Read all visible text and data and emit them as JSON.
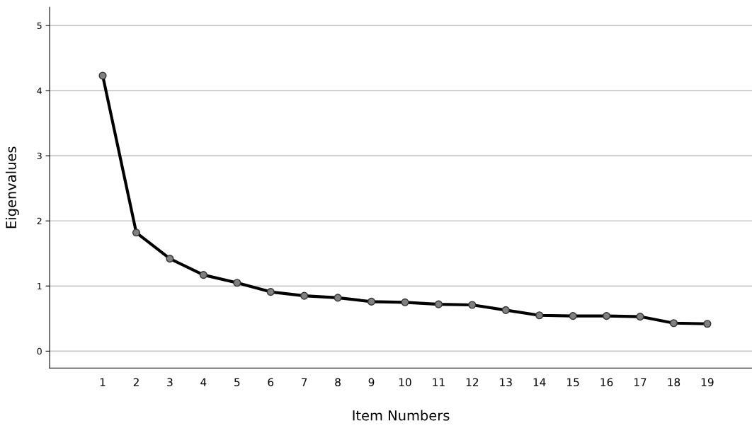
{
  "chart_data": {
    "type": "line",
    "xlabel": "Item Numbers",
    "ylabel": "Eigenvalues",
    "categories": [
      "1",
      "2",
      "3",
      "4",
      "5",
      "6",
      "7",
      "8",
      "9",
      "10",
      "11",
      "12",
      "13",
      "14",
      "15",
      "16",
      "17",
      "18",
      "19"
    ],
    "series": [
      {
        "color": "#000000",
        "values": [
          4.23,
          1.82,
          1.42,
          1.17,
          1.05,
          0.91,
          0.85,
          0.82,
          0.76,
          0.75,
          0.72,
          0.71,
          0.63,
          0.55,
          0.54,
          0.54,
          0.53,
          0.43,
          0.42
        ]
      }
    ],
    "ylim": [
      -0.26,
      5.28
    ],
    "yticks": [
      0,
      1,
      2,
      3,
      4,
      5
    ],
    "grid": "y",
    "marker": "circle",
    "line_style": "solid"
  }
}
